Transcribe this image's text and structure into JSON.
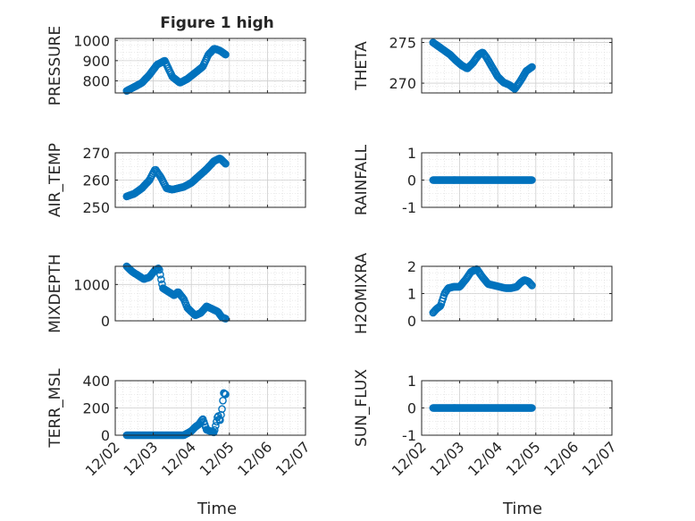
{
  "figure_title": "Figure 1 high",
  "xlabel": "Time",
  "x_ticks": [
    "12/02",
    "12/03",
    "12/04",
    "12/05",
    "12/06",
    "12/07"
  ],
  "chart_data": [
    {
      "id": "pressure",
      "type": "scatter",
      "ylabel": "PRESSURE",
      "ylim": [
        740,
        1010
      ],
      "yticks": [
        800,
        900,
        1000
      ],
      "x_range": [
        0.3,
        2.9
      ],
      "x": [
        0.3,
        0.5,
        0.7,
        0.9,
        1.1,
        1.3,
        1.5,
        1.7,
        1.9,
        2.1,
        2.3,
        2.45,
        2.6,
        2.75,
        2.9
      ],
      "y": [
        750,
        770,
        790,
        830,
        880,
        900,
        820,
        790,
        810,
        840,
        870,
        930,
        960,
        950,
        930
      ]
    },
    {
      "id": "theta",
      "type": "scatter",
      "ylabel": "THETA",
      "ylim": [
        268.8,
        275.5
      ],
      "yticks": [
        270,
        275
      ],
      "x_range": [
        0.3,
        2.9
      ],
      "x": [
        0.3,
        0.45,
        0.6,
        0.75,
        0.9,
        1.05,
        1.2,
        1.35,
        1.5,
        1.6,
        1.7,
        1.85,
        2.0,
        2.15,
        2.3,
        2.45,
        2.6,
        2.75,
        2.9
      ],
      "y": [
        275,
        274.5,
        274,
        273.5,
        272.8,
        272.2,
        271.8,
        272.5,
        273.5,
        273.8,
        273.2,
        272,
        270.8,
        270.1,
        269.8,
        269.3,
        270.3,
        271.5,
        272
      ]
    },
    {
      "id": "air_temp",
      "type": "scatter",
      "ylabel": "AIR_TEMP",
      "ylim": [
        250,
        270
      ],
      "yticks": [
        250,
        260,
        270
      ],
      "x_range": [
        0.3,
        2.9
      ],
      "x": [
        0.3,
        0.5,
        0.7,
        0.9,
        1.05,
        1.2,
        1.35,
        1.5,
        1.65,
        1.8,
        2.0,
        2.2,
        2.4,
        2.6,
        2.75,
        2.9
      ],
      "y": [
        254,
        255,
        257,
        260,
        264,
        261,
        257,
        256.5,
        257,
        257.5,
        259,
        261.5,
        264,
        267,
        268,
        266
      ]
    },
    {
      "id": "rainfall",
      "type": "scatter",
      "ylabel": "RAINFALL",
      "ylim": [
        -1,
        1
      ],
      "yticks": [
        -1,
        0,
        1
      ],
      "x_range": [
        0.3,
        2.9
      ],
      "constant_value": 0
    },
    {
      "id": "mixdepth",
      "type": "scatter",
      "ylabel": "MIXDEPTH",
      "ylim": [
        0,
        1500
      ],
      "yticks": [
        0,
        1000
      ],
      "x_range": [
        0.3,
        2.9
      ],
      "x": [
        0.3,
        0.45,
        0.6,
        0.75,
        0.9,
        1.05,
        1.15,
        1.25,
        1.4,
        1.55,
        1.65,
        1.8,
        1.9,
        2.0,
        2.1,
        2.25,
        2.4,
        2.5,
        2.6,
        2.7,
        2.8,
        2.9
      ],
      "y": [
        1500,
        1350,
        1250,
        1150,
        1200,
        1400,
        1450,
        900,
        800,
        700,
        800,
        600,
        350,
        250,
        150,
        220,
        400,
        350,
        300,
        250,
        100,
        60
      ]
    },
    {
      "id": "h2omixra",
      "type": "scatter",
      "ylabel": "H2OMIXRA",
      "ylim": [
        0,
        2
      ],
      "yticks": [
        0,
        1,
        2
      ],
      "x_range": [
        0.3,
        2.9
      ],
      "x": [
        0.3,
        0.4,
        0.5,
        0.6,
        0.7,
        0.85,
        1.0,
        1.15,
        1.3,
        1.45,
        1.6,
        1.75,
        1.9,
        2.05,
        2.2,
        2.35,
        2.5,
        2.6,
        2.7,
        2.8,
        2.9
      ],
      "y": [
        0.3,
        0.45,
        0.55,
        1.0,
        1.2,
        1.25,
        1.25,
        1.5,
        1.8,
        1.9,
        1.6,
        1.35,
        1.3,
        1.25,
        1.2,
        1.2,
        1.25,
        1.4,
        1.5,
        1.45,
        1.3
      ]
    },
    {
      "id": "terr_msl",
      "type": "scatter",
      "ylabel": "TERR_MSL",
      "ylim": [
        0,
        400
      ],
      "yticks": [
        0,
        200,
        400
      ],
      "x_range": [
        0.3,
        2.9
      ],
      "x": [
        0.3,
        0.8,
        1.3,
        1.8,
        2.0,
        2.1,
        2.2,
        2.3,
        2.4,
        2.5,
        2.6,
        2.7,
        2.75,
        2.8,
        2.85,
        2.9
      ],
      "y": [
        0,
        0,
        0,
        0,
        30,
        60,
        80,
        120,
        40,
        30,
        20,
        150,
        100,
        180,
        310,
        300
      ]
    },
    {
      "id": "sun_flux",
      "type": "scatter",
      "ylabel": "SUN_FLUX",
      "ylim": [
        -1,
        1
      ],
      "yticks": [
        -1,
        0,
        1
      ],
      "x_range": [
        0.3,
        2.9
      ],
      "constant_value": 0
    }
  ]
}
